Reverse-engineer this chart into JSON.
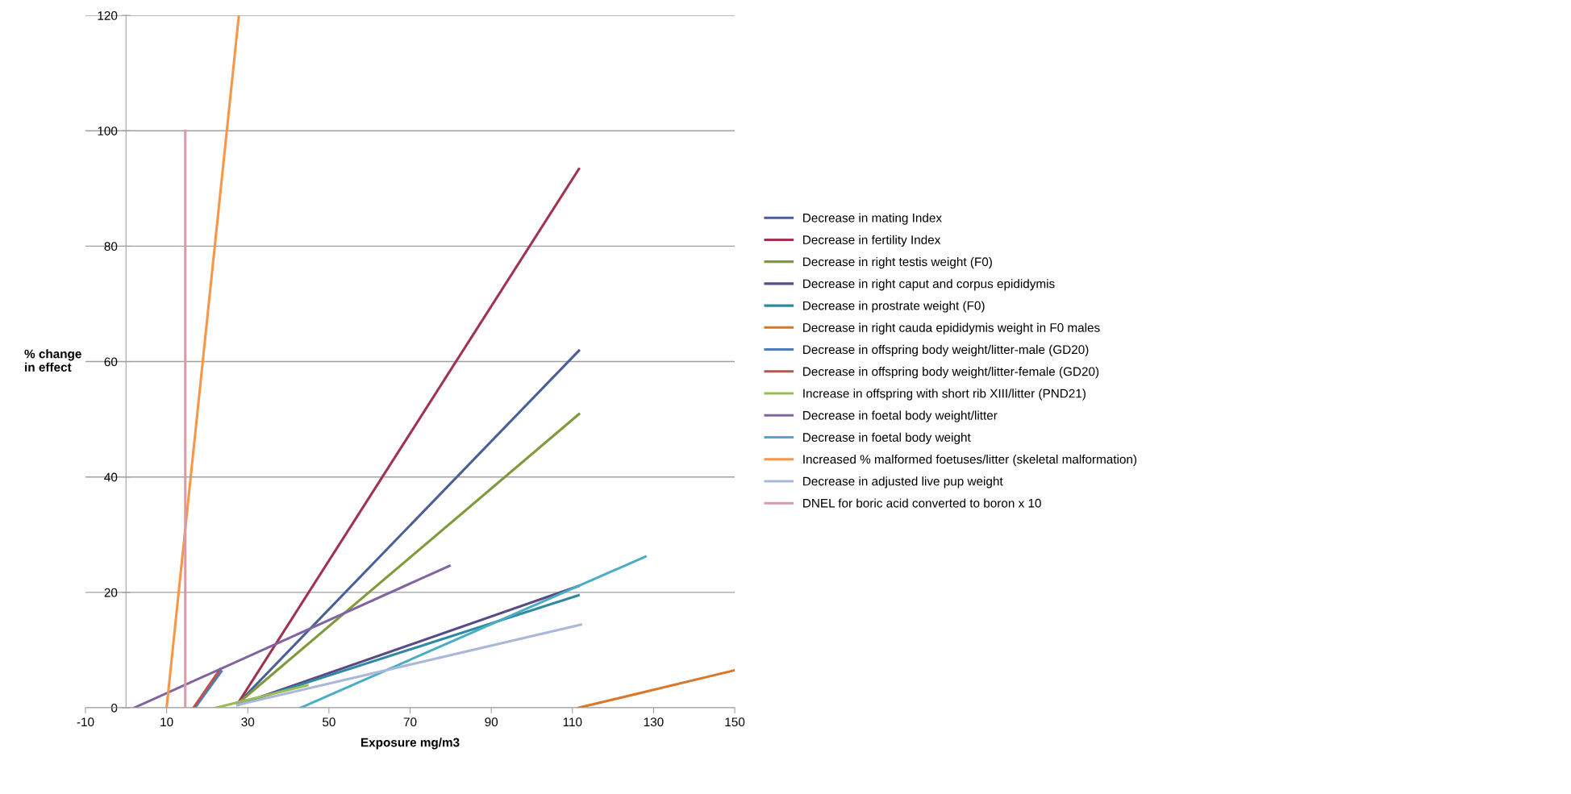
{
  "chart_data": {
    "type": "line",
    "xlabel": "Exposure mg/m3",
    "ylabel": "% change\nin effect",
    "xlim": [
      -10,
      150
    ],
    "xticks": [
      -10,
      10,
      30,
      50,
      70,
      90,
      110,
      130,
      150
    ],
    "ylim": [
      0,
      120
    ],
    "yticks": [
      0,
      20,
      40,
      60,
      80,
      100,
      120
    ],
    "grid": "y",
    "legend": "right",
    "marker": "none",
    "line_style": "solid",
    "series": [
      {
        "name": "Decrease in mating Index",
        "color": "#4a5f9a",
        "x": [
          27.5,
          111.6
        ],
        "values": [
          0.7,
          61.9
        ]
      },
      {
        "name": "Decrease in fertility Index",
        "color": "#a0334f",
        "x": [
          27.5,
          111.6
        ],
        "values": [
          0.7,
          93.4
        ]
      },
      {
        "name": "Decrease in right testis weight (F0)",
        "color": "#7f9a3c",
        "x": [
          27.5,
          111.6
        ],
        "values": [
          0.7,
          50.9
        ]
      },
      {
        "name": "Decrease in right caput and corpus epididymis",
        "color": "#5a4a85",
        "x": [
          27.5,
          111.5
        ],
        "values": [
          0.5,
          21.1
        ]
      },
      {
        "name": "Decrease in prostrate weight (F0)",
        "color": "#2e8aa0",
        "x": [
          27.5,
          111.5
        ],
        "values": [
          0.5,
          19.5
        ]
      },
      {
        "name": "Decrease in right cauda epididymis weight in F0 males",
        "color": "#d9772a",
        "x": [
          111.5,
          150
        ],
        "values": [
          0,
          6.5
        ]
      },
      {
        "name": "Decrease in offspring body weight/litter-male (GD20)",
        "color": "#4a7ebb",
        "x": [
          17.0,
          23.5
        ],
        "values": [
          0,
          6.3
        ]
      },
      {
        "name": "Decrease in offspring body weight/litter-female (GD20)",
        "color": "#c0504d",
        "x": [
          16.6,
          23.2
        ],
        "values": [
          0,
          6.7
        ]
      },
      {
        "name": "Increase in offspring with short rib XIII/litter (PND21)",
        "color": "#9bbb59",
        "x": [
          22.1,
          44.7
        ],
        "values": [
          0,
          3.9
        ]
      },
      {
        "name": "Decrease in foetal body weight/litter",
        "color": "#8064a2",
        "x": [
          2.0,
          79.7
        ],
        "values": [
          0,
          24.6
        ]
      },
      {
        "name": "Decrease in foetal body weight",
        "color": "#4bacc6",
        "x": [
          43.0,
          128.0
        ],
        "values": [
          0,
          26.2
        ]
      },
      {
        "name": "Increased % malformed foetuses/litter (skeletal malformation)",
        "color": "#f79646",
        "x": [
          10.0,
          27.8
        ],
        "values": [
          0,
          120
        ]
      },
      {
        "name": "Decrease in adjusted live pup weight",
        "color": "#a9b8d8",
        "x": [
          27.5,
          112.1
        ],
        "values": [
          0.5,
          14.4
        ]
      },
      {
        "name": "DNEL for boric acid converted to boron x 10",
        "color": "#d99ba6",
        "x": [
          14.6,
          14.6
        ],
        "values": [
          0,
          100
        ]
      }
    ]
  }
}
